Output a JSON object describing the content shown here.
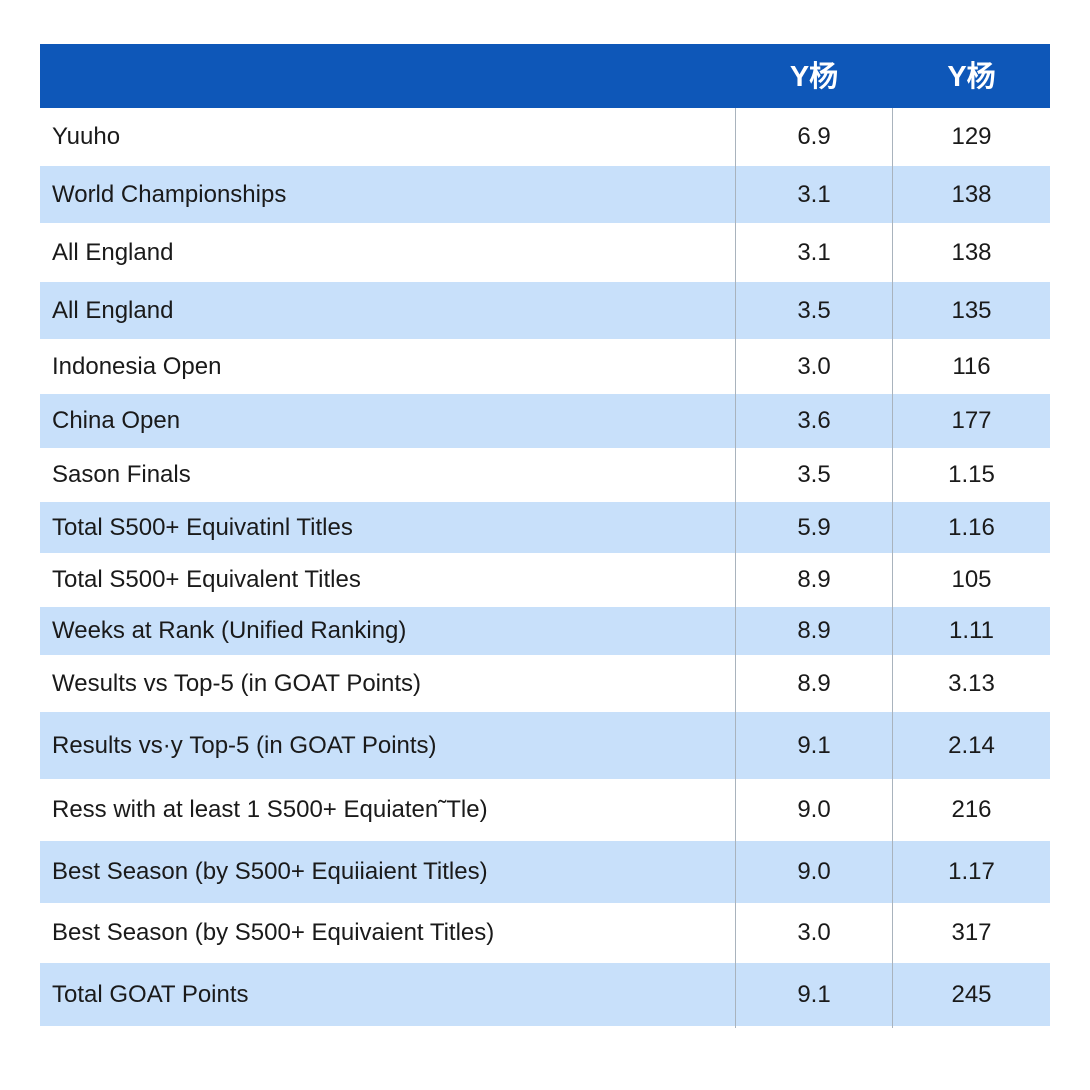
{
  "chart_data": {
    "type": "table",
    "columns": [
      "",
      "Y杨",
      "Y杨"
    ],
    "rows": [
      {
        "label": "Yuuho",
        "v1": "6.9",
        "v2": "129"
      },
      {
        "label": "World Championships",
        "v1": "3.1",
        "v2": "138"
      },
      {
        "label": "All England",
        "v1": "3.1",
        "v2": "138"
      },
      {
        "label": "All England",
        "v1": "3.5",
        "v2": "135"
      },
      {
        "label": "Indonesia Open",
        "v1": "3.0",
        "v2": "116"
      },
      {
        "label": "China Open",
        "v1": "3.6",
        "v2": "177"
      },
      {
        "label": "Sason Finals",
        "v1": "3.5",
        "v2": "1.15"
      },
      {
        "label": "Total S500+ Equivatinl Titles",
        "v1": "5.9",
        "v2": "1.16"
      },
      {
        "label": "Total S500+ Equivalent Titles",
        "v1": "8.9",
        "v2": "105"
      },
      {
        "label": "Weeks at Rank (Unified Ranking)",
        "v1": "8.9",
        "v2": "1.11"
      },
      {
        "label": "Wesults vs Top-5 (in GOAT Points)",
        "v1": "8.9",
        "v2": "3.13"
      },
      {
        "label": "Results vs·у Top-5 (in GOAT Points)",
        "v1": "9.1",
        "v2": "2.14"
      },
      {
        "label": "Ress with at least 1 S500+ Equiaten˜Tle)",
        "v1": "9.0",
        "v2": "216"
      },
      {
        "label": "Best Season (by S500+ Equiiaient Titles)",
        "v1": "9.0",
        "v2": "1.17"
      },
      {
        "label": "Best Season (by S500+ Equivaient Titles)",
        "v1": "3.0",
        "v2": "317"
      },
      {
        "label": "Total GOAT Points",
        "v1": "9.1",
        "v2": "245"
      }
    ]
  }
}
